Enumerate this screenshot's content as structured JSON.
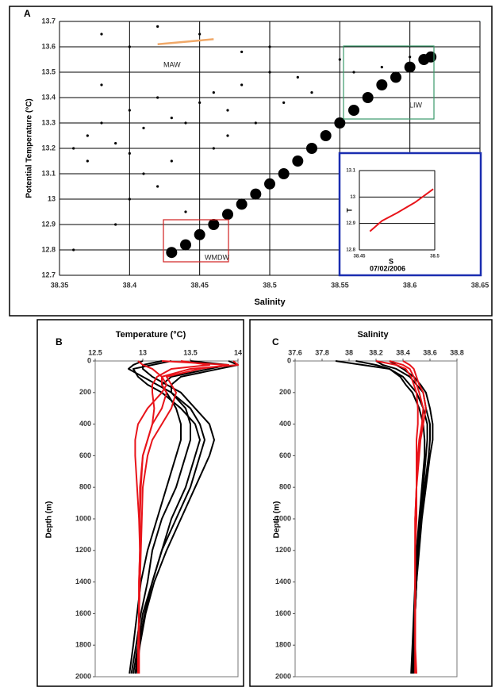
{
  "chart_data": [
    {
      "type": "scatter",
      "label": "A",
      "x_label": "Salinity",
      "y_label": "Potential Temperature (°C)",
      "annotations": [
        "MAW",
        "LIW",
        "WMDW"
      ],
      "xlim": [
        38.35,
        38.65
      ],
      "ylim": [
        12.7,
        13.7
      ],
      "xticks": [
        38.35,
        38.4,
        38.45,
        38.5,
        38.55,
        38.6,
        38.65
      ],
      "yticks": [
        12.7,
        12.8,
        12.9,
        13,
        13.1,
        13.2,
        13.3,
        13.4,
        13.5,
        13.6,
        13.7
      ],
      "grid": true,
      "series": [
        {
          "color": "#000000",
          "mode": "markers",
          "x": [
            38.37,
            38.38,
            38.36,
            38.39,
            38.4,
            38.41,
            38.42,
            38.38,
            38.43,
            38.44,
            38.45,
            38.46,
            38.47,
            38.48,
            38.5,
            38.52,
            38.55,
            38.4,
            38.38,
            38.42,
            38.45,
            38.48,
            38.5,
            38.36,
            38.39,
            38.4,
            38.41,
            38.42,
            38.44,
            38.43,
            38.46,
            38.47,
            38.49,
            38.51,
            38.53,
            38.56,
            38.58,
            38.6,
            38.37,
            38.4
          ],
          "y": [
            13.25,
            13.3,
            13.2,
            13.22,
            13.35,
            13.28,
            13.4,
            13.45,
            13.32,
            13.3,
            13.38,
            13.42,
            13.35,
            13.45,
            13.5,
            13.48,
            13.55,
            13.6,
            13.65,
            13.68,
            13.65,
            13.58,
            13.6,
            12.8,
            12.9,
            13.0,
            13.1,
            13.05,
            12.95,
            13.15,
            13.2,
            13.25,
            13.3,
            13.38,
            13.42,
            13.5,
            13.52,
            13.56,
            13.15,
            13.18
          ]
        },
        {
          "color": "#000000",
          "mode": "band",
          "x": [
            38.43,
            38.44,
            38.45,
            38.46,
            38.47,
            38.48,
            38.49,
            38.5,
            38.51,
            38.52,
            38.53,
            38.54,
            38.55,
            38.56,
            38.57,
            38.58,
            38.59,
            38.6,
            38.61,
            38.615
          ],
          "y": [
            12.79,
            12.82,
            12.86,
            12.9,
            12.94,
            12.98,
            13.02,
            13.06,
            13.1,
            13.15,
            13.2,
            13.25,
            13.3,
            13.35,
            13.4,
            13.45,
            13.48,
            13.52,
            13.55,
            13.56
          ]
        },
        {
          "color": "#f0a868",
          "mode": "line",
          "x": [
            38.42,
            38.44,
            38.46
          ],
          "y": [
            13.61,
            13.62,
            13.63
          ]
        }
      ]
    },
    {
      "type": "line",
      "label": "07/02/2006",
      "x_label": "S",
      "y_label": "T",
      "xlim": [
        38.45,
        38.5
      ],
      "ylim": [
        12.8,
        13.1
      ],
      "xticks": [
        38.45,
        38.5
      ],
      "yticks": [
        12.8,
        12.9,
        13,
        13.1
      ],
      "grid": true,
      "series": [
        {
          "color": "#e8141a",
          "x": [
            38.457,
            38.465,
            38.475,
            38.487,
            38.499
          ],
          "y": [
            12.87,
            12.91,
            12.94,
            12.98,
            13.03
          ]
        }
      ]
    },
    {
      "type": "profile",
      "label": "B",
      "title": "Temperature (°C)",
      "y_label": "Depth (m)",
      "xlim": [
        12.5,
        14
      ],
      "ylim": [
        0,
        2000
      ],
      "xticks": [
        12.5,
        13,
        13.5,
        14
      ],
      "yticks": [
        0,
        200,
        400,
        600,
        800,
        1000,
        1200,
        1400,
        1600,
        1800,
        2000
      ],
      "y": [
        0,
        25,
        50,
        100,
        150,
        200,
        300,
        400,
        500,
        600,
        800,
        1000,
        1200,
        1400,
        1600,
        1800,
        1980
      ],
      "series": [
        {
          "color": "#000000",
          "values": [
            13.3,
            13.1,
            12.9,
            12.95,
            13.05,
            13.2,
            13.4,
            13.55,
            13.6,
            13.55,
            13.45,
            13.3,
            13.2,
            13.1,
            13.0,
            12.95,
            12.9
          ]
        },
        {
          "color": "#000000",
          "values": [
            13.9,
            14.0,
            13.8,
            13.4,
            13.3,
            13.3,
            13.45,
            13.5,
            13.5,
            13.45,
            13.35,
            13.2,
            13.1,
            13.05,
            12.98,
            12.93,
            12.88
          ]
        },
        {
          "color": "#000000",
          "values": [
            13.0,
            12.9,
            12.85,
            13.0,
            13.15,
            13.3,
            13.5,
            13.6,
            13.65,
            13.6,
            13.5,
            13.35,
            13.2,
            13.1,
            13.02,
            12.96,
            12.92
          ]
        },
        {
          "color": "#000000",
          "values": [
            13.5,
            13.9,
            13.7,
            13.3,
            13.2,
            13.25,
            13.35,
            13.4,
            13.4,
            13.35,
            13.25,
            13.15,
            13.05,
            12.98,
            12.94,
            12.9,
            12.86
          ]
        },
        {
          "color": "#000000",
          "values": [
            13.2,
            13.0,
            13.0,
            13.1,
            13.25,
            13.4,
            13.55,
            13.7,
            13.75,
            13.7,
            13.55,
            13.4,
            13.25,
            13.12,
            13.03,
            12.97,
            12.93
          ]
        },
        {
          "color": "#e8141a",
          "values": [
            13.95,
            14.0,
            13.5,
            13.2,
            13.2,
            13.25,
            13.2,
            13.1,
            13.05,
            13.0,
            12.98,
            12.97,
            12.97,
            12.96,
            12.96,
            12.95,
            12.95
          ]
        },
        {
          "color": "#e8141a",
          "values": [
            13.2,
            13.9,
            13.6,
            13.25,
            13.3,
            13.35,
            13.3,
            13.2,
            13.1,
            13.05,
            13.0,
            12.99,
            12.98,
            12.97,
            12.96,
            12.96,
            12.96
          ]
        },
        {
          "color": "#e8141a",
          "values": [
            12.95,
            13.0,
            13.1,
            13.2,
            13.25,
            13.2,
            13.05,
            12.95,
            12.92,
            12.92,
            12.94,
            12.96,
            12.97,
            12.97,
            12.96,
            12.96,
            12.96
          ]
        },
        {
          "color": "#e8141a",
          "values": [
            13.4,
            13.7,
            13.3,
            13.15,
            13.1,
            13.1,
            13.12,
            13.1,
            13.05,
            13.0,
            12.97,
            12.97,
            12.97,
            12.96,
            12.96,
            12.96,
            12.95
          ]
        }
      ]
    },
    {
      "type": "profile",
      "label": "C",
      "title": "Salinity",
      "y_label": "Depth (m)",
      "xlim": [
        37.6,
        38.8
      ],
      "ylim": [
        0,
        2000
      ],
      "xticks": [
        37.6,
        37.8,
        38,
        38.2,
        38.4,
        38.6,
        38.8
      ],
      "yticks": [
        0,
        200,
        400,
        600,
        800,
        1000,
        1200,
        1400,
        1600,
        1800,
        2000
      ],
      "y": [
        0,
        25,
        50,
        100,
        150,
        200,
        300,
        400,
        500,
        600,
        800,
        1000,
        1200,
        1400,
        1600,
        1800,
        1980
      ],
      "series": [
        {
          "color": "#000000",
          "values": [
            37.9,
            38.1,
            38.3,
            38.4,
            38.45,
            38.5,
            38.55,
            38.58,
            38.58,
            38.57,
            38.55,
            38.53,
            38.51,
            38.5,
            38.49,
            38.48,
            38.48
          ]
        },
        {
          "color": "#000000",
          "values": [
            38.2,
            38.25,
            38.35,
            38.45,
            38.5,
            38.55,
            38.57,
            38.6,
            38.6,
            38.59,
            38.56,
            38.53,
            38.51,
            38.5,
            38.49,
            38.48,
            38.47
          ]
        },
        {
          "color": "#000000",
          "values": [
            38.05,
            38.2,
            38.3,
            38.38,
            38.42,
            38.47,
            38.52,
            38.55,
            38.56,
            38.56,
            38.54,
            38.52,
            38.5,
            38.49,
            38.48,
            38.47,
            38.46
          ]
        },
        {
          "color": "#000000",
          "values": [
            38.3,
            38.35,
            38.4,
            38.48,
            38.53,
            38.57,
            38.6,
            38.62,
            38.62,
            38.6,
            38.57,
            38.54,
            38.52,
            38.5,
            38.49,
            38.48,
            38.48
          ]
        },
        {
          "color": "#e8141a",
          "values": [
            38.3,
            38.4,
            38.45,
            38.48,
            38.5,
            38.52,
            38.55,
            38.54,
            38.52,
            38.51,
            38.5,
            38.49,
            38.49,
            38.49,
            38.49,
            38.49,
            38.49
          ]
        },
        {
          "color": "#e8141a",
          "values": [
            38.4,
            38.45,
            38.48,
            38.5,
            38.52,
            38.55,
            38.57,
            38.55,
            38.53,
            38.52,
            38.5,
            38.5,
            38.49,
            38.49,
            38.49,
            38.49,
            38.49
          ]
        },
        {
          "color": "#e8141a",
          "values": [
            38.2,
            38.35,
            38.42,
            38.46,
            38.48,
            38.5,
            38.51,
            38.51,
            38.5,
            38.5,
            38.5,
            38.49,
            38.49,
            38.49,
            38.49,
            38.49,
            38.5
          ]
        }
      ]
    }
  ]
}
